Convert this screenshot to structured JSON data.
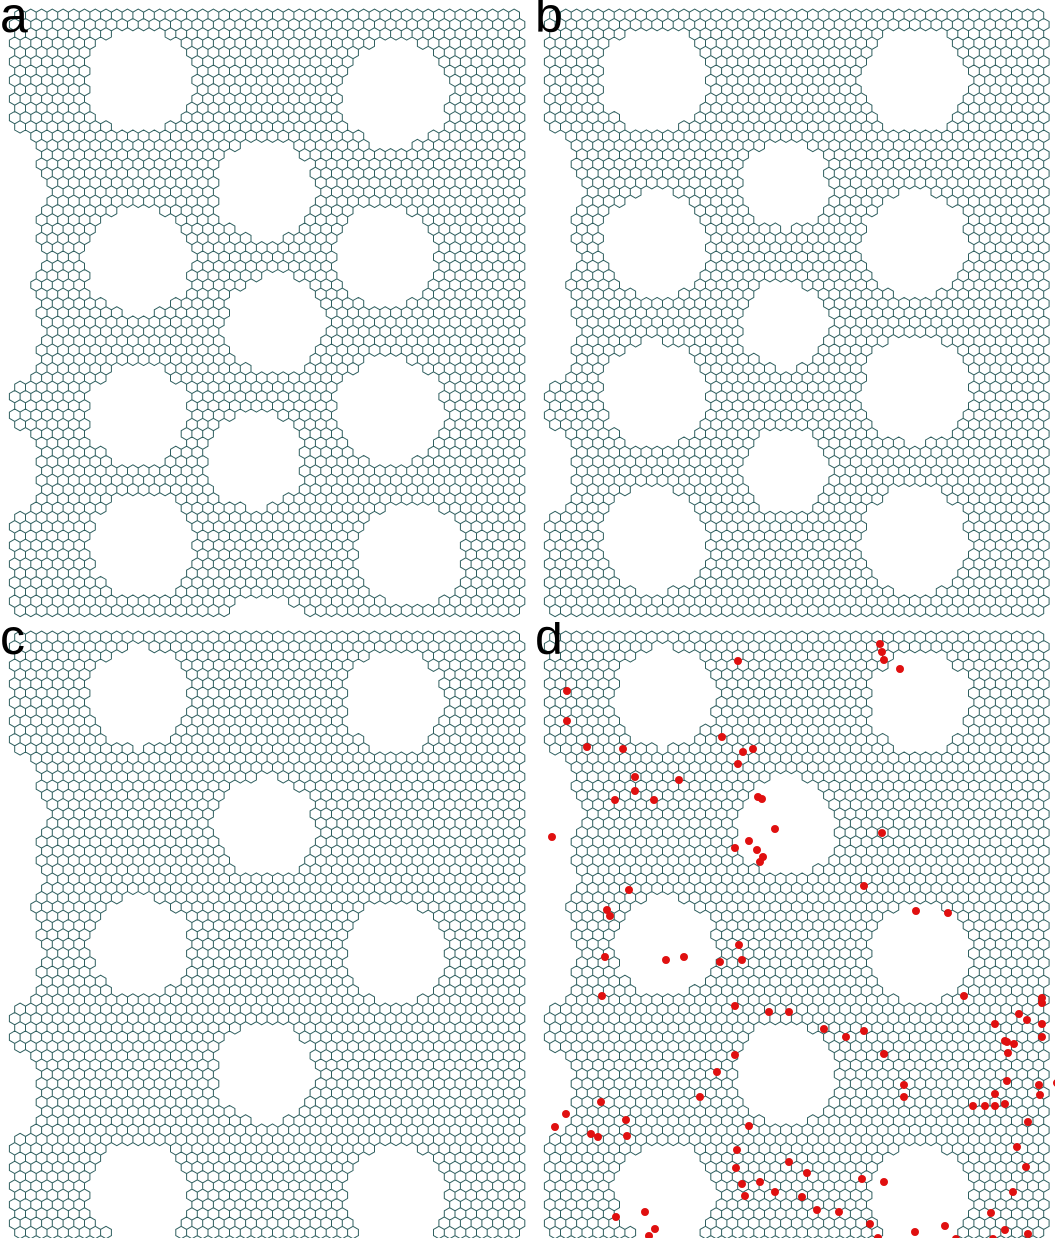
{
  "figure": {
    "panels": [
      {
        "id": "a",
        "label": "a",
        "variant": "pristine-wide",
        "defects": false
      },
      {
        "id": "b",
        "label": "b",
        "variant": "pristine-alt",
        "defects": false
      },
      {
        "id": "c",
        "label": "c",
        "variant": "vacancies",
        "defects": false
      },
      {
        "id": "d",
        "label": "d",
        "variant": "vacancies-marked",
        "defects": true
      }
    ]
  },
  "colors": {
    "lattice_stroke": "#2f5f5f",
    "background": "#ffffff",
    "defect_marker": "#e01010",
    "label_text": "#000000"
  }
}
